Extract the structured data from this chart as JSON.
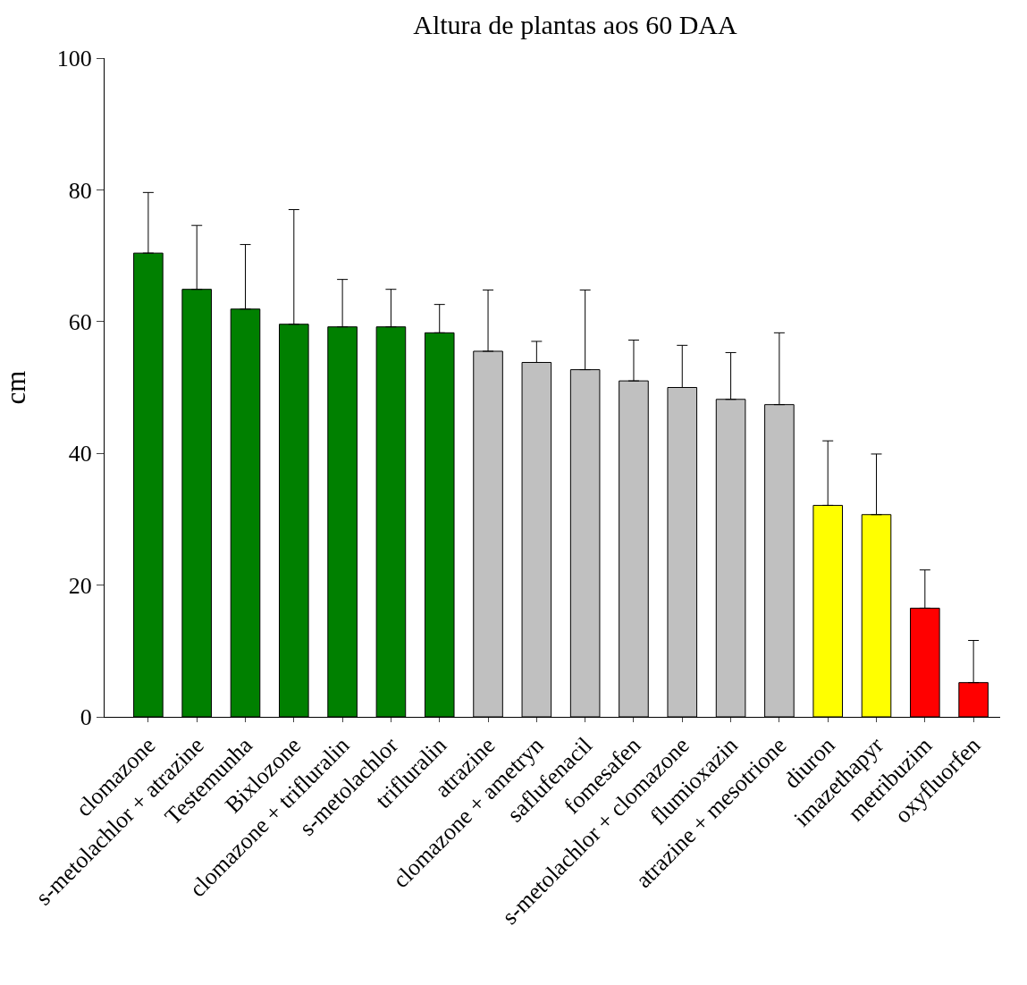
{
  "chart_data": {
    "type": "bar",
    "title": "Altura de plantas aos 60 DAA",
    "ylabel": "cm",
    "categories": [
      "clomazone",
      "s-metolachlor + atrazine",
      "Testemunha",
      "Bixlozone",
      "clomazone + trifluralin",
      "s-metolachlor",
      "trifluralin",
      "atrazine",
      "clomazone + ametryn",
      "saflufenacil",
      "fomesafen",
      "s-metolachlor + clomazone",
      "flumioxazin",
      "atrazine + mesotrione",
      "diuron",
      "imazethapyr",
      "metribuzim",
      "oxyfluorfen"
    ],
    "values": [
      70.4,
      64.9,
      61.9,
      59.6,
      59.2,
      59.2,
      58.3,
      55.5,
      53.8,
      52.7,
      51.0,
      50.0,
      48.2,
      47.4,
      32.1,
      30.7,
      16.5,
      5.2
    ],
    "errors": [
      [
        70.4,
        79.6
      ],
      [
        64.9,
        74.6
      ],
      [
        61.9,
        71.7
      ],
      [
        59.6,
        77.0
      ],
      [
        59.2,
        66.4
      ],
      [
        59.2,
        64.9
      ],
      [
        58.3,
        62.6
      ],
      [
        55.5,
        64.8
      ],
      [
        53.8,
        57.0
      ],
      [
        52.7,
        64.8
      ],
      [
        51.0,
        57.2
      ],
      [
        50.0,
        56.4
      ],
      [
        48.2,
        55.3
      ],
      [
        47.4,
        58.3
      ],
      [
        32.1,
        41.9
      ],
      [
        30.7,
        39.9
      ],
      [
        16.5,
        22.3
      ],
      [
        5.2,
        11.6
      ]
    ],
    "colors": [
      "#008000",
      "#008000",
      "#008000",
      "#008000",
      "#008000",
      "#008000",
      "#008000",
      "#c0c0c0",
      "#c0c0c0",
      "#c0c0c0",
      "#c0c0c0",
      "#c0c0c0",
      "#c0c0c0",
      "#c0c0c0",
      "#ffff00",
      "#ffff00",
      "#ff0000",
      "#ff0000"
    ],
    "ylim": [
      0,
      100
    ],
    "yticks": [
      0,
      20,
      40,
      60,
      80,
      100
    ]
  }
}
